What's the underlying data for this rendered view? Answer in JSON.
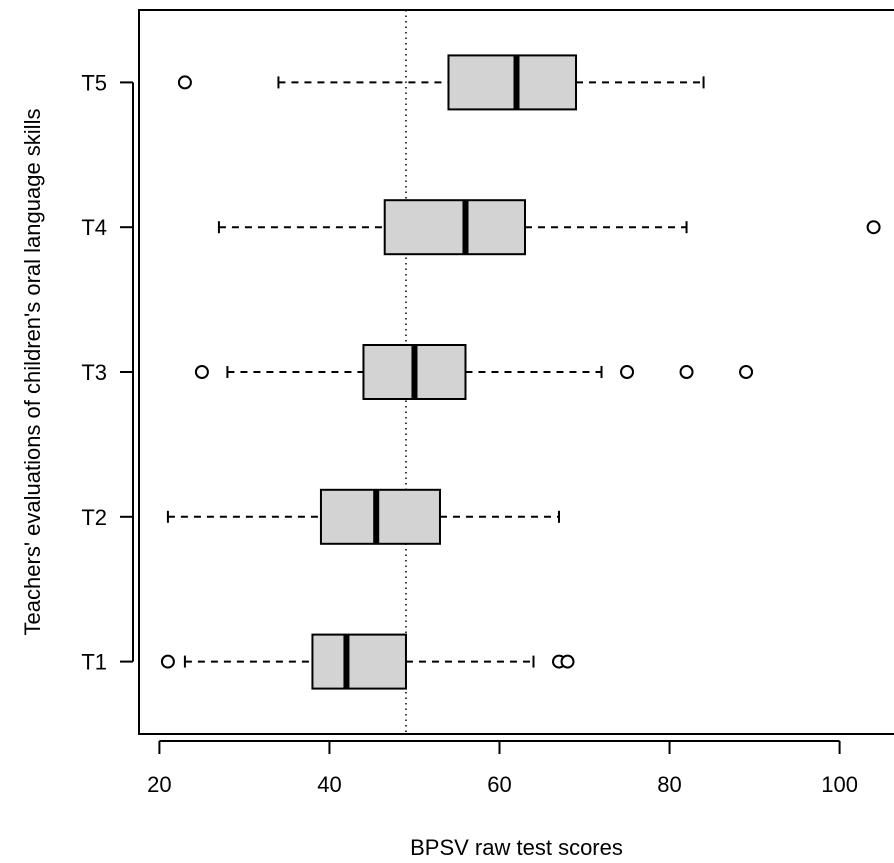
{
  "chart_data": {
    "type": "boxplot",
    "orientation": "horizontal",
    "xlabel": "BPSV raw test scores",
    "ylabel": "Teachers' evaluations of children's oral language skills",
    "xlim": [
      17.6,
      106.4
    ],
    "x_ticks": [
      20,
      40,
      60,
      80,
      100
    ],
    "x_tick_labels": [
      "20",
      "40",
      "60",
      "80",
      "100"
    ],
    "reference_line": {
      "x": 49,
      "style": "dotted"
    },
    "box_fill": "#d3d3d3",
    "categories": [
      "T1",
      "T2",
      "T3",
      "T4",
      "T5"
    ],
    "boxes": [
      {
        "name": "T1",
        "whisker_low": 23,
        "q1": 38,
        "median": 42,
        "q3": 49,
        "whisker_high": 64,
        "outliers": [
          21,
          67,
          68
        ]
      },
      {
        "name": "T2",
        "whisker_low": 21,
        "q1": 39,
        "median": 45.5,
        "q3": 53,
        "whisker_high": 67,
        "outliers": []
      },
      {
        "name": "T3",
        "whisker_low": 28,
        "q1": 44,
        "median": 50,
        "q3": 56,
        "whisker_high": 72,
        "outliers": [
          25,
          75,
          82,
          89
        ]
      },
      {
        "name": "T4",
        "whisker_low": 27,
        "q1": 46.5,
        "median": 56,
        "q3": 63,
        "whisker_high": 82,
        "outliers": [
          104
        ]
      },
      {
        "name": "T5",
        "whisker_low": 34,
        "q1": 54,
        "median": 62,
        "q3": 69,
        "whisker_high": 84,
        "outliers": [
          23
        ]
      }
    ]
  }
}
